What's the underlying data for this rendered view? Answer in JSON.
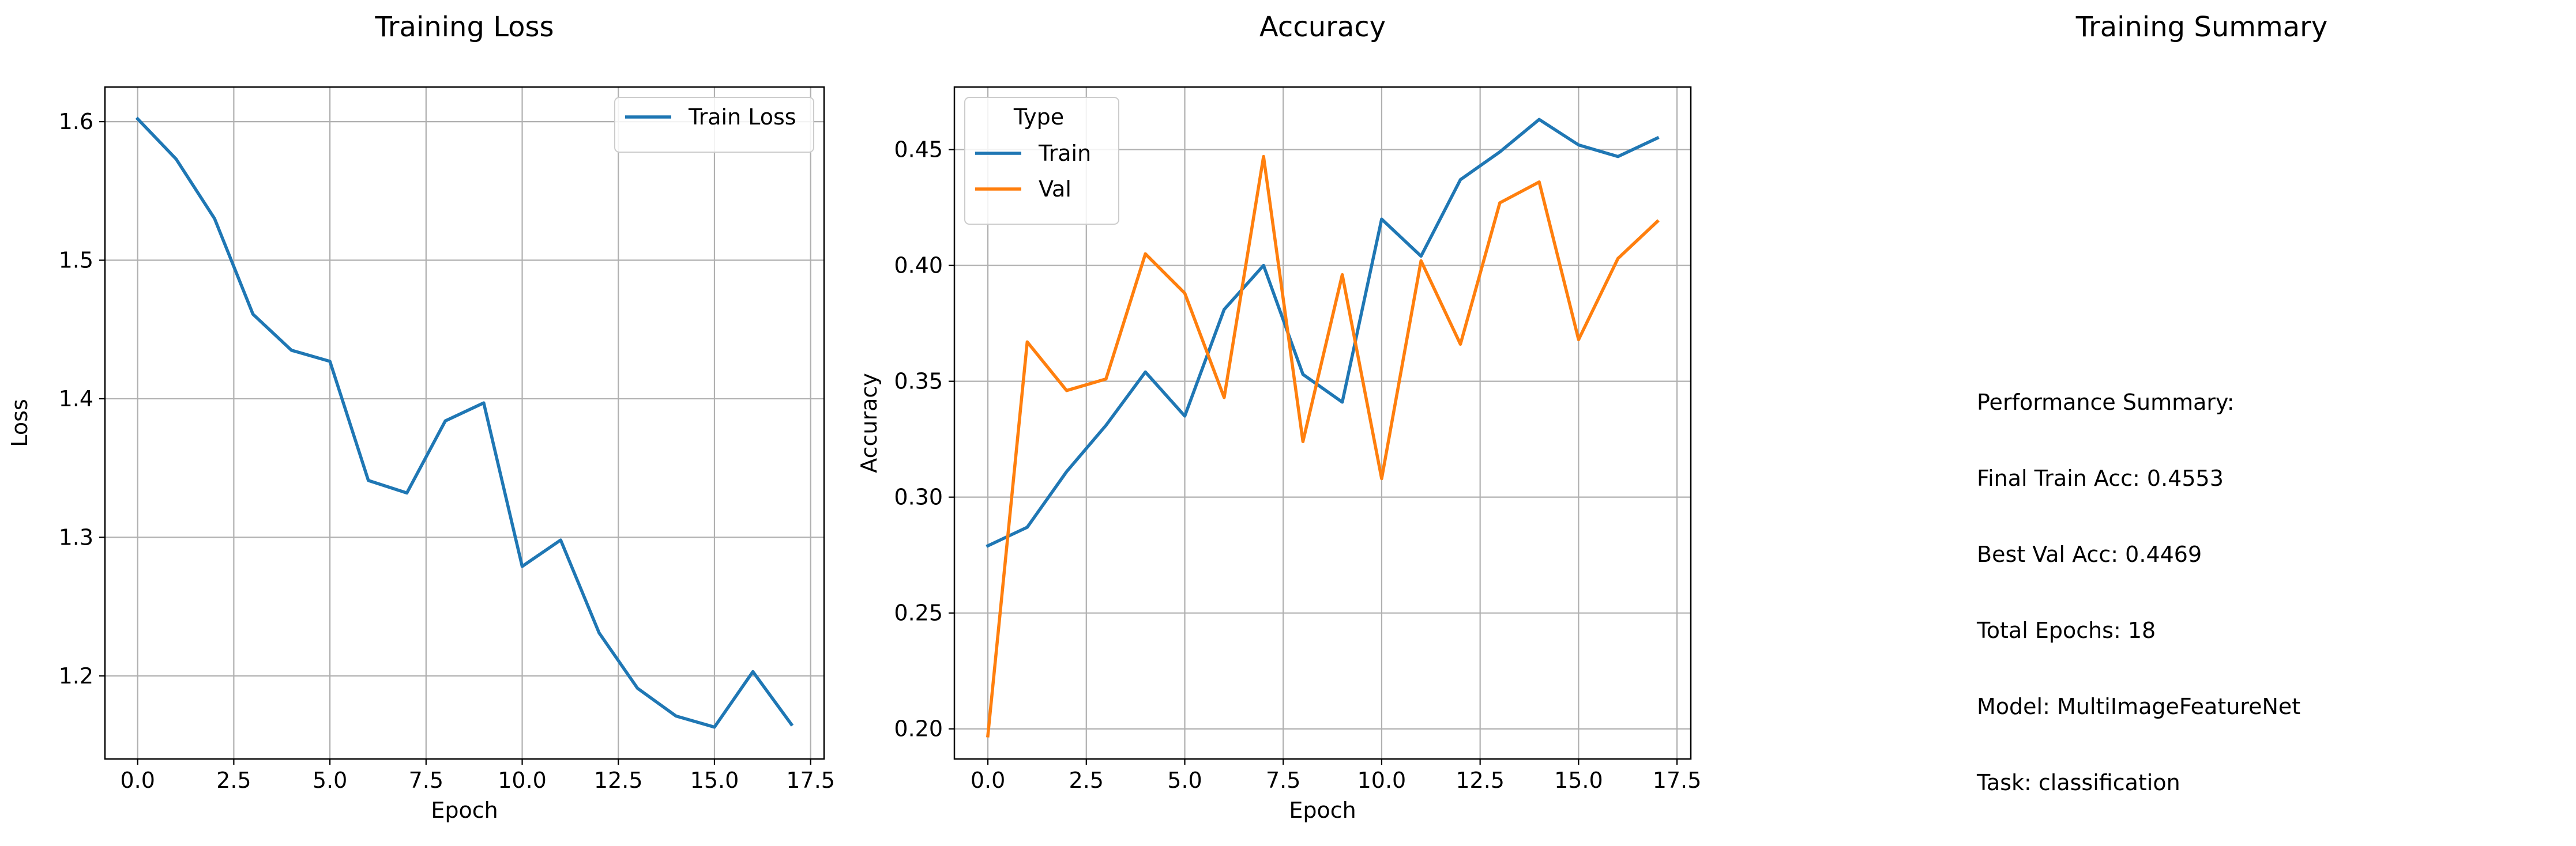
{
  "chart_data": [
    {
      "type": "line",
      "title": "Training Loss",
      "xlabel": "Epoch",
      "ylabel": "Loss",
      "xlim": [
        -0.85,
        17.85
      ],
      "ylim": [
        1.14,
        1.625
      ],
      "xticks": [
        0.0,
        2.5,
        5.0,
        7.5,
        10.0,
        12.5,
        15.0,
        17.5
      ],
      "xtick_labels": [
        "0.0",
        "2.5",
        "5.0",
        "7.5",
        "10.0",
        "12.5",
        "15.0",
        "17.5"
      ],
      "yticks": [
        1.2,
        1.3,
        1.4,
        1.5,
        1.6
      ],
      "ytick_labels": [
        "1.2",
        "1.3",
        "1.4",
        "1.5",
        "1.6"
      ],
      "grid": true,
      "legend": {
        "position": "upper right",
        "title": ""
      },
      "x": [
        0,
        1,
        2,
        3,
        4,
        5,
        6,
        7,
        8,
        9,
        10,
        11,
        12,
        13,
        14,
        15,
        16,
        17
      ],
      "series": [
        {
          "name": "Train Loss",
          "color": "#1f77b4",
          "values": [
            1.602,
            1.573,
            1.53,
            1.461,
            1.435,
            1.427,
            1.341,
            1.332,
            1.384,
            1.397,
            1.279,
            1.298,
            1.231,
            1.191,
            1.171,
            1.163,
            1.203,
            1.165
          ]
        }
      ]
    },
    {
      "type": "line",
      "title": "Accuracy",
      "xlabel": "Epoch",
      "ylabel": "Accuracy",
      "xlim": [
        -0.85,
        17.85
      ],
      "ylim": [
        0.187,
        0.477
      ],
      "xticks": [
        0.0,
        2.5,
        5.0,
        7.5,
        10.0,
        12.5,
        15.0,
        17.5
      ],
      "xtick_labels": [
        "0.0",
        "2.5",
        "5.0",
        "7.5",
        "10.0",
        "12.5",
        "15.0",
        "17.5"
      ],
      "yticks": [
        0.2,
        0.25,
        0.3,
        0.35,
        0.4,
        0.45
      ],
      "ytick_labels": [
        "0.20",
        "0.25",
        "0.30",
        "0.35",
        "0.40",
        "0.45"
      ],
      "grid": true,
      "legend": {
        "position": "upper left",
        "title": "Type"
      },
      "x": [
        0,
        1,
        2,
        3,
        4,
        5,
        6,
        7,
        8,
        9,
        10,
        11,
        12,
        13,
        14,
        15,
        16,
        17
      ],
      "series": [
        {
          "name": "Train",
          "color": "#1f77b4",
          "values": [
            0.279,
            0.287,
            0.311,
            0.331,
            0.354,
            0.335,
            0.381,
            0.4,
            0.353,
            0.341,
            0.42,
            0.404,
            0.437,
            0.449,
            0.463,
            0.452,
            0.447,
            0.455
          ]
        },
        {
          "name": "Val",
          "color": "#ff7f0e",
          "values": [
            0.197,
            0.367,
            0.346,
            0.351,
            0.405,
            0.388,
            0.343,
            0.447,
            0.324,
            0.396,
            0.308,
            0.402,
            0.366,
            0.427,
            0.436,
            0.368,
            0.403,
            0.419
          ]
        }
      ]
    }
  ],
  "summary": {
    "title": "Training Summary",
    "lines": [
      "Performance Summary:",
      "Final Train Acc: 0.4553",
      "Best Val Acc: 0.4469",
      "Total Epochs: 18",
      "Model: MultiImageFeatureNet",
      "Task: classification"
    ]
  }
}
